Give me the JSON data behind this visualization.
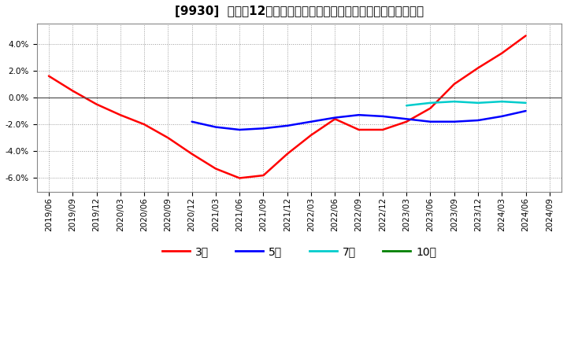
{
  "title": "[9930]  売上高12か月移動合計の対前年同期増減率の平均値の推移",
  "xlabels": [
    "2019/06",
    "2019/09",
    "2019/12",
    "2020/03",
    "2020/06",
    "2020/09",
    "2020/12",
    "2021/03",
    "2021/06",
    "2021/09",
    "2021/12",
    "2022/03",
    "2022/06",
    "2022/09",
    "2022/12",
    "2023/03",
    "2023/06",
    "2023/09",
    "2023/12",
    "2024/03",
    "2024/06",
    "2024/09"
  ],
  "series_3y": {
    "label": "3年",
    "color": "#ff0000",
    "data": [
      [
        "2019/06",
        0.016
      ],
      [
        "2019/09",
        0.005
      ],
      [
        "2019/12",
        -0.005
      ],
      [
        "2020/03",
        -0.013
      ],
      [
        "2020/06",
        -0.02
      ],
      [
        "2020/09",
        -0.03
      ],
      [
        "2020/12",
        -0.042
      ],
      [
        "2021/03",
        -0.053
      ],
      [
        "2021/06",
        -0.06
      ],
      [
        "2021/09",
        -0.058
      ],
      [
        "2021/12",
        -0.042
      ],
      [
        "2022/03",
        -0.028
      ],
      [
        "2022/06",
        -0.016
      ],
      [
        "2022/09",
        -0.024
      ],
      [
        "2022/12",
        -0.024
      ],
      [
        "2023/03",
        -0.018
      ],
      [
        "2023/06",
        -0.008
      ],
      [
        "2023/09",
        0.01
      ],
      [
        "2023/12",
        0.022
      ],
      [
        "2024/03",
        0.033
      ],
      [
        "2024/06",
        0.046
      ]
    ]
  },
  "series_5y": {
    "label": "5年",
    "color": "#0000ff",
    "data": [
      [
        "2020/12",
        -0.018
      ],
      [
        "2021/03",
        -0.022
      ],
      [
        "2021/06",
        -0.024
      ],
      [
        "2021/09",
        -0.023
      ],
      [
        "2021/12",
        -0.021
      ],
      [
        "2022/03",
        -0.018
      ],
      [
        "2022/06",
        -0.015
      ],
      [
        "2022/09",
        -0.013
      ],
      [
        "2022/12",
        -0.014
      ],
      [
        "2023/03",
        -0.016
      ],
      [
        "2023/06",
        -0.018
      ],
      [
        "2023/09",
        -0.018
      ],
      [
        "2023/12",
        -0.017
      ],
      [
        "2024/03",
        -0.014
      ],
      [
        "2024/06",
        -0.01
      ]
    ]
  },
  "series_7y": {
    "label": "7年",
    "color": "#00cccc",
    "data": [
      [
        "2023/03",
        -0.006
      ],
      [
        "2023/06",
        -0.004
      ],
      [
        "2023/09",
        -0.003
      ],
      [
        "2023/12",
        -0.004
      ],
      [
        "2024/03",
        -0.003
      ],
      [
        "2024/06",
        -0.004
      ]
    ]
  },
  "series_10y": {
    "label": "10年",
    "color": "#008000",
    "data": []
  },
  "ylim": [
    -0.07,
    0.055
  ],
  "yticks": [
    -0.06,
    -0.04,
    -0.02,
    0.0,
    0.02,
    0.04
  ],
  "background_color": "#ffffff",
  "grid_color": "#aaaaaa",
  "zero_line_color": "#555555",
  "title_fontsize": 11,
  "tick_fontsize": 7.5,
  "legend_fontsize": 10
}
